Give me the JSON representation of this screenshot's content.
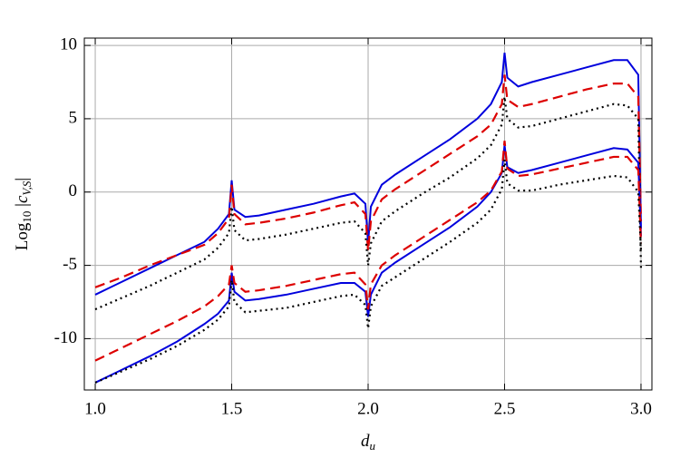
{
  "chart_data": {
    "type": "line",
    "xlabel": [
      "d",
      "u"
    ],
    "ylabel": [
      "Log",
      "10",
      " |",
      "c",
      "V,S",
      "|"
    ],
    "x": [
      1.0,
      1.1,
      1.2,
      1.3,
      1.4,
      1.45,
      1.49,
      1.5,
      1.51,
      1.55,
      1.6,
      1.7,
      1.8,
      1.9,
      1.95,
      1.99,
      2.0,
      2.01,
      2.05,
      2.1,
      2.2,
      2.3,
      2.4,
      2.45,
      2.49,
      2.5,
      2.51,
      2.55,
      2.6,
      2.7,
      2.8,
      2.9,
      2.95,
      2.99,
      3.0
    ],
    "series": [
      {
        "color": "#0000dd",
        "dash": "solid",
        "values": [
          -7,
          -6.1,
          -5.2,
          -4.3,
          -3.4,
          -2.5,
          -1.5,
          0.8,
          -1.2,
          -1.7,
          -1.6,
          -1.2,
          -0.8,
          -0.3,
          -0.1,
          -0.8,
          -3.5,
          -1,
          0.5,
          1.2,
          2.4,
          3.6,
          5.0,
          6.0,
          7.5,
          9.5,
          7.8,
          7.2,
          7.5,
          8.0,
          8.5,
          9.0,
          9.0,
          8.0,
          -2.5
        ]
      },
      {
        "color": "#dd0000",
        "dash": "dashed",
        "values": [
          -6.5,
          -5.8,
          -5.0,
          -4.3,
          -3.6,
          -2.8,
          -1.8,
          0.5,
          -1.5,
          -2.2,
          -2.1,
          -1.8,
          -1.4,
          -0.9,
          -0.7,
          -1.5,
          -4,
          -2,
          -0.5,
          0.2,
          1.4,
          2.6,
          3.8,
          4.6,
          6,
          8,
          6.3,
          5.8,
          6,
          6.5,
          7.0,
          7.4,
          7.4,
          6.5,
          -2
        ]
      },
      {
        "color": "#000000",
        "dash": "dotted",
        "values": [
          -8,
          -7.2,
          -6.4,
          -5.5,
          -4.6,
          -3.8,
          -2.8,
          -1,
          -2.6,
          -3.3,
          -3.2,
          -2.9,
          -2.5,
          -2.1,
          -2.0,
          -2.8,
          -5,
          -3.5,
          -2.0,
          -1.3,
          -0.1,
          1.0,
          2.3,
          3.2,
          4.6,
          6.5,
          5,
          4.4,
          4.5,
          5.0,
          5.5,
          6.0,
          5.9,
          5,
          -5.2
        ]
      },
      {
        "color": "#0000dd",
        "dash": "solid",
        "values": [
          -13,
          -12.1,
          -11.2,
          -10.2,
          -9.0,
          -8.3,
          -7.4,
          -5.5,
          -6.8,
          -7.4,
          -7.3,
          -7.0,
          -6.6,
          -6.2,
          -6.2,
          -6.8,
          -8.5,
          -7,
          -5.5,
          -4.8,
          -3.6,
          -2.4,
          -1.0,
          0,
          1.3,
          3.2,
          1.7,
          1.3,
          1.5,
          2.0,
          2.5,
          3.0,
          2.9,
          2.0,
          -3
        ]
      },
      {
        "color": "#dd0000",
        "dash": "dashed",
        "values": [
          -11.5,
          -10.6,
          -9.7,
          -8.8,
          -7.8,
          -7.1,
          -6.3,
          -5,
          -6.2,
          -6.8,
          -6.7,
          -6.4,
          -6.0,
          -5.6,
          -5.5,
          -6.3,
          -8,
          -6.3,
          -5,
          -4.3,
          -3.1,
          -1.9,
          -0.7,
          0.1,
          1.4,
          3.5,
          1.6,
          1.1,
          1.2,
          1.6,
          2.0,
          2.4,
          2.4,
          1.5,
          -3.5
        ]
      },
      {
        "color": "#000000",
        "dash": "dotted",
        "values": [
          -13,
          -12.2,
          -11.4,
          -10.5,
          -9.4,
          -8.7,
          -7.8,
          -6,
          -7.5,
          -8.2,
          -8.1,
          -7.9,
          -7.5,
          -7.1,
          -7.0,
          -7.7,
          -9.3,
          -7.8,
          -6.4,
          -5.8,
          -4.6,
          -3.4,
          -2.1,
          -1.2,
          0.2,
          2.2,
          0.6,
          0.1,
          0.1,
          0.5,
          0.8,
          1.1,
          1.0,
          0,
          -4
        ]
      }
    ],
    "xlim": [
      0.96,
      3.04
    ],
    "xticks": [
      {
        "value": 1,
        "label": "1.0"
      },
      1.5,
      {
        "value": 2,
        "label": "2.0"
      },
      2.5,
      {
        "value": 3,
        "label": "3.0"
      }
    ],
    "ylim": [
      -13.5,
      10.5
    ],
    "yticks": [
      -10,
      -5,
      0,
      5,
      10
    ],
    "grid": true
  }
}
